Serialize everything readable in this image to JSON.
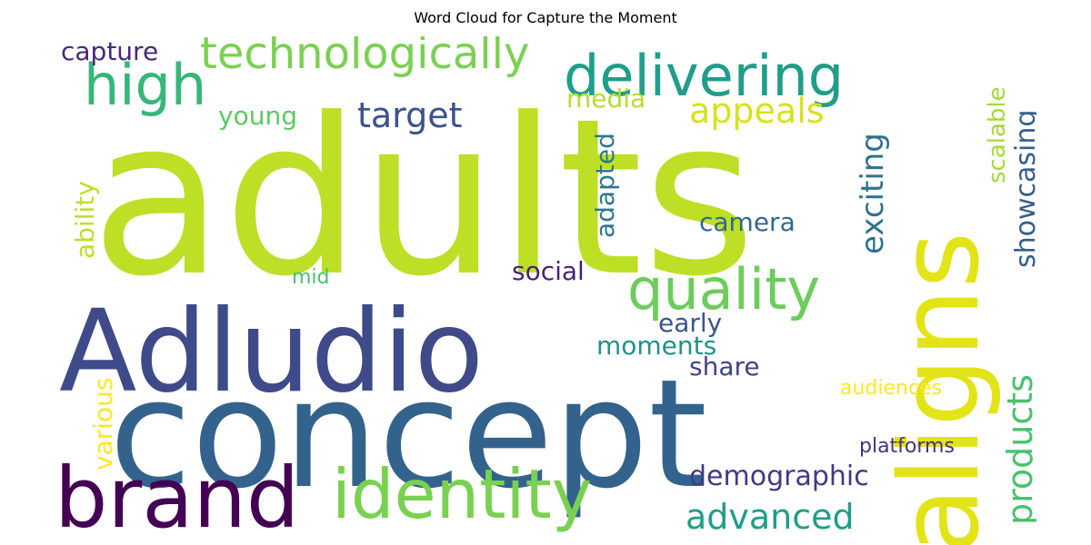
{
  "chart_data": {
    "type": "wordcloud",
    "title": "Word Cloud for Capture the Moment",
    "words": [
      {
        "text": "adults",
        "color": "#bddf26"
      },
      {
        "text": "concept",
        "color": "#33638d"
      },
      {
        "text": "Adludio",
        "color": "#3e4a89"
      },
      {
        "text": "aligns",
        "color": "#e2e418"
      },
      {
        "text": "brand",
        "color": "#440154"
      },
      {
        "text": "identity",
        "color": "#7ad151"
      },
      {
        "text": "delivering",
        "color": "#1f9e89"
      },
      {
        "text": "quality",
        "color": "#6ccd5a"
      },
      {
        "text": "high",
        "color": "#35b779"
      },
      {
        "text": "technologically",
        "color": "#7ad151"
      },
      {
        "text": "target",
        "color": "#3b528b"
      },
      {
        "text": "appeals",
        "color": "#d8e219"
      },
      {
        "text": "capture",
        "color": "#482878"
      },
      {
        "text": "young",
        "color": "#5ec962"
      },
      {
        "text": "media",
        "color": "#b5de2b"
      },
      {
        "text": "products",
        "color": "#4ac16d"
      },
      {
        "text": "advanced",
        "color": "#1f9e89"
      },
      {
        "text": "demographic",
        "color": "#443983"
      },
      {
        "text": "camera",
        "color": "#31688e"
      },
      {
        "text": "social",
        "color": "#482173"
      },
      {
        "text": "early",
        "color": "#39568c"
      },
      {
        "text": "moments",
        "color": "#21918c"
      },
      {
        "text": "share",
        "color": "#414487"
      },
      {
        "text": "audiences",
        "color": "#fde725"
      },
      {
        "text": "platforms",
        "color": "#46327e"
      },
      {
        "text": "mid",
        "color": "#4ac16d"
      },
      {
        "text": "exciting",
        "color": "#2c728e"
      },
      {
        "text": "showcasing",
        "color": "#355f8d"
      },
      {
        "text": "scalable",
        "color": "#a5db36"
      },
      {
        "text": "adapted",
        "color": "#2a788e"
      },
      {
        "text": "ability",
        "color": "#c0df25"
      },
      {
        "text": "various",
        "color": "#fde725"
      }
    ]
  }
}
